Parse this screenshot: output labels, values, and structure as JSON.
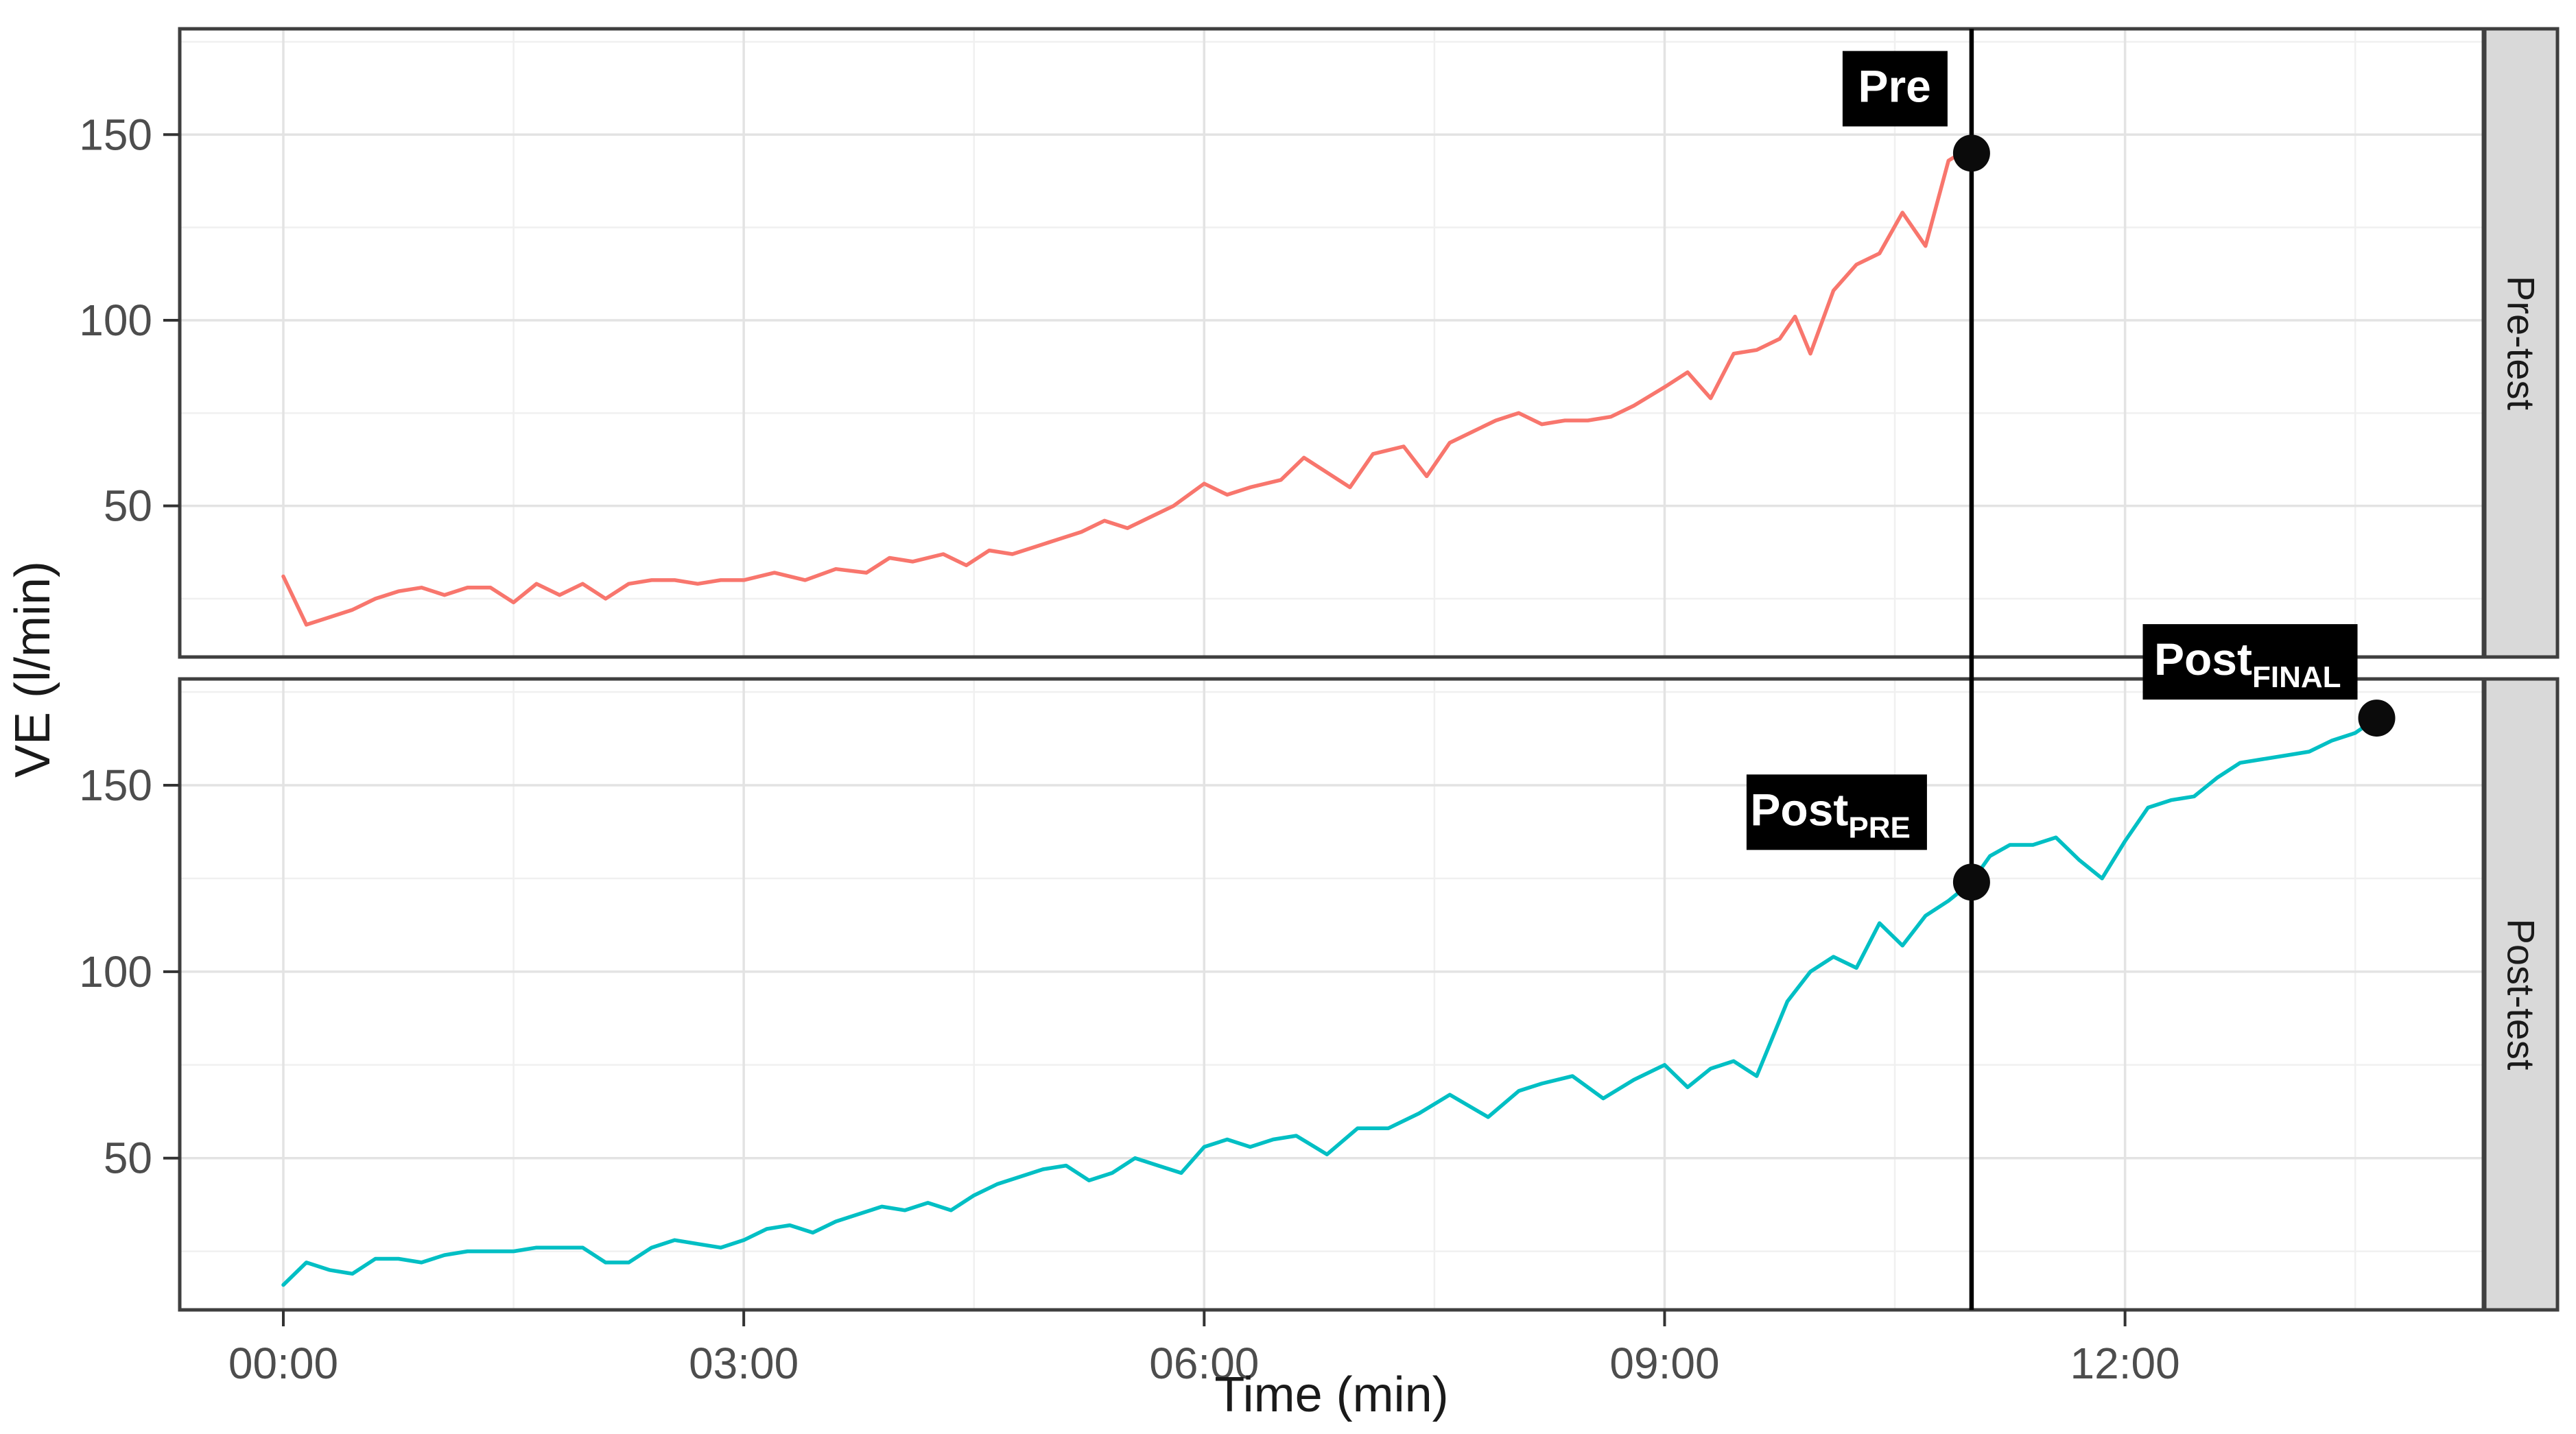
{
  "chart_data": {
    "type": "line",
    "title": "",
    "xlabel": "Time (min)",
    "ylabel": "VE (l/min)",
    "legend": "none",
    "grid": true,
    "x_axis": {
      "domain_minutes": [
        -0.675,
        14.335
      ],
      "major_tick_minutes": [
        0,
        3,
        6,
        9,
        12
      ],
      "major_tick_labels": [
        "00:00",
        "03:00",
        "06:00",
        "09:00",
        "12:00"
      ],
      "minor_tick_minutes": [
        1.5,
        4.5,
        7.5,
        10.5,
        13.5
      ]
    },
    "y_axis": {
      "domain": [
        9.3,
        178.5
      ],
      "major_ticks": [
        50,
        100,
        150
      ],
      "major_tick_labels": [
        "50",
        "100",
        "150"
      ],
      "minor_ticks": [
        25,
        75,
        125,
        175
      ]
    },
    "facets": [
      {
        "id": "pre-test",
        "strip_label": "Pre-test",
        "series": {
          "name": "VE pre-test",
          "color": "#F8766D",
          "points": [
            [
              0.0,
              31
            ],
            [
              0.15,
              18
            ],
            [
              0.3,
              20
            ],
            [
              0.45,
              22
            ],
            [
              0.6,
              25
            ],
            [
              0.75,
              27
            ],
            [
              0.9,
              28
            ],
            [
              1.05,
              26
            ],
            [
              1.2,
              28
            ],
            [
              1.35,
              28
            ],
            [
              1.5,
              24
            ],
            [
              1.65,
              29
            ],
            [
              1.8,
              26
            ],
            [
              1.95,
              29
            ],
            [
              2.1,
              25
            ],
            [
              2.25,
              29
            ],
            [
              2.4,
              30
            ],
            [
              2.55,
              30
            ],
            [
              2.7,
              29
            ],
            [
              2.85,
              30
            ],
            [
              3.0,
              30
            ],
            [
              3.2,
              32
            ],
            [
              3.4,
              30
            ],
            [
              3.6,
              33
            ],
            [
              3.8,
              32
            ],
            [
              3.95,
              36
            ],
            [
              4.1,
              35
            ],
            [
              4.3,
              37
            ],
            [
              4.45,
              34
            ],
            [
              4.6,
              38
            ],
            [
              4.75,
              37
            ],
            [
              4.9,
              39
            ],
            [
              5.05,
              41
            ],
            [
              5.2,
              43
            ],
            [
              5.35,
              46
            ],
            [
              5.5,
              44
            ],
            [
              5.65,
              47
            ],
            [
              5.8,
              50
            ],
            [
              6.0,
              56
            ],
            [
              6.15,
              53
            ],
            [
              6.3,
              55
            ],
            [
              6.5,
              57
            ],
            [
              6.65,
              63
            ],
            [
              6.8,
              59
            ],
            [
              6.95,
              55
            ],
            [
              7.1,
              64
            ],
            [
              7.3,
              66
            ],
            [
              7.45,
              58
            ],
            [
              7.6,
              67
            ],
            [
              7.75,
              70
            ],
            [
              7.9,
              73
            ],
            [
              8.05,
              75
            ],
            [
              8.2,
              72
            ],
            [
              8.35,
              73
            ],
            [
              8.5,
              73
            ],
            [
              8.65,
              74
            ],
            [
              8.8,
              77
            ],
            [
              9.0,
              82
            ],
            [
              9.15,
              86
            ],
            [
              9.3,
              79
            ],
            [
              9.45,
              91
            ],
            [
              9.6,
              92
            ],
            [
              9.75,
              95
            ],
            [
              9.85,
              101
            ],
            [
              9.95,
              91
            ],
            [
              10.1,
              108
            ],
            [
              10.25,
              115
            ],
            [
              10.4,
              118
            ],
            [
              10.55,
              129
            ],
            [
              10.7,
              120
            ],
            [
              10.85,
              143
            ],
            [
              10.93,
              145
            ],
            [
              11.0,
              145
            ]
          ]
        }
      },
      {
        "id": "post-test",
        "strip_label": "Post-test",
        "series": {
          "name": "VE post-test",
          "color": "#00BFC4",
          "points": [
            [
              0.0,
              16
            ],
            [
              0.15,
              22
            ],
            [
              0.3,
              20
            ],
            [
              0.45,
              19
            ],
            [
              0.6,
              23
            ],
            [
              0.75,
              23
            ],
            [
              0.9,
              22
            ],
            [
              1.05,
              24
            ],
            [
              1.2,
              25
            ],
            [
              1.35,
              25
            ],
            [
              1.5,
              25
            ],
            [
              1.65,
              26
            ],
            [
              1.8,
              26
            ],
            [
              1.95,
              26
            ],
            [
              2.1,
              22
            ],
            [
              2.25,
              22
            ],
            [
              2.4,
              26
            ],
            [
              2.55,
              28
            ],
            [
              2.7,
              27
            ],
            [
              2.85,
              26
            ],
            [
              3.0,
              28
            ],
            [
              3.15,
              31
            ],
            [
              3.3,
              32
            ],
            [
              3.45,
              30
            ],
            [
              3.6,
              33
            ],
            [
              3.75,
              35
            ],
            [
              3.9,
              37
            ],
            [
              4.05,
              36
            ],
            [
              4.2,
              38
            ],
            [
              4.35,
              36
            ],
            [
              4.5,
              40
            ],
            [
              4.65,
              43
            ],
            [
              4.8,
              45
            ],
            [
              4.95,
              47
            ],
            [
              5.1,
              48
            ],
            [
              5.25,
              44
            ],
            [
              5.4,
              46
            ],
            [
              5.55,
              50
            ],
            [
              5.7,
              48
            ],
            [
              5.85,
              46
            ],
            [
              6.0,
              53
            ],
            [
              6.15,
              55
            ],
            [
              6.3,
              53
            ],
            [
              6.45,
              55
            ],
            [
              6.6,
              56
            ],
            [
              6.8,
              51
            ],
            [
              7.0,
              58
            ],
            [
              7.2,
              58
            ],
            [
              7.4,
              62
            ],
            [
              7.6,
              67
            ],
            [
              7.85,
              61
            ],
            [
              8.05,
              68
            ],
            [
              8.2,
              70
            ],
            [
              8.4,
              72
            ],
            [
              8.6,
              66
            ],
            [
              8.8,
              71
            ],
            [
              9.0,
              75
            ],
            [
              9.15,
              69
            ],
            [
              9.3,
              74
            ],
            [
              9.45,
              76
            ],
            [
              9.6,
              72
            ],
            [
              9.8,
              92
            ],
            [
              9.95,
              100
            ],
            [
              10.1,
              104
            ],
            [
              10.25,
              101
            ],
            [
              10.4,
              113
            ],
            [
              10.55,
              107
            ],
            [
              10.7,
              115
            ],
            [
              10.85,
              119
            ],
            [
              11.0,
              124
            ],
            [
              11.12,
              131
            ],
            [
              11.25,
              134
            ],
            [
              11.4,
              134
            ],
            [
              11.55,
              136
            ],
            [
              11.7,
              130
            ],
            [
              11.85,
              125
            ],
            [
              12.0,
              135
            ],
            [
              12.15,
              144
            ],
            [
              12.3,
              146
            ],
            [
              12.45,
              147
            ],
            [
              12.6,
              152
            ],
            [
              12.75,
              156
            ],
            [
              12.9,
              157
            ],
            [
              13.05,
              158
            ],
            [
              13.2,
              159
            ],
            [
              13.35,
              162
            ],
            [
              13.5,
              164
            ],
            [
              13.64,
              168
            ]
          ]
        }
      }
    ],
    "annotations": {
      "vline": {
        "x_minutes": 11.0,
        "color": "#000000"
      },
      "markers": [
        {
          "facet": "pre-test",
          "x_minutes": 11.0,
          "y": 145,
          "label_main": "Pre",
          "label_sub": "",
          "label_offset": [
            -35,
            -39
          ]
        },
        {
          "facet": "post-test",
          "x_minutes": 11.0,
          "y": 124,
          "label_main": "Post",
          "label_sub": "PRE",
          "label_offset": [
            -65,
            -47
          ]
        },
        {
          "facet": "post-test",
          "x_minutes": 13.64,
          "y": 168,
          "label_main": "Post",
          "label_sub": "FINAL",
          "label_offset": [
            -28,
            -27
          ]
        }
      ]
    },
    "style": {
      "panel_background": "#FFFFFF",
      "panel_border": "#3F3F3F",
      "grid_major": "#E3E3E3",
      "grid_minor": "#F0F0F0",
      "strip_background": "#D9D9D9",
      "strip_text": "#1A1A1A",
      "axis_text": "#4D4D4D",
      "axis_title": "#1A1A1A",
      "tick_color": "#333333",
      "marker_fill": "#0B0B0B",
      "label_box_fill": "#000000",
      "label_text": "#FFFFFF"
    }
  }
}
